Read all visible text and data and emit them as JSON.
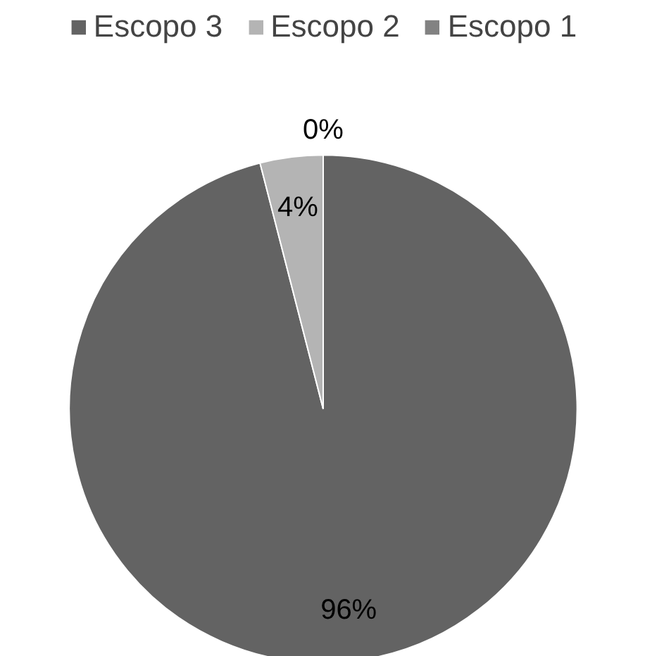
{
  "chart_data": {
    "type": "pie",
    "categories": [
      "Escopo 3",
      "Escopo 2",
      "Escopo 1"
    ],
    "values": [
      96,
      4,
      0
    ],
    "colors": [
      "#636363",
      "#b4b4b4",
      "#828282"
    ],
    "value_labels": [
      "96%",
      "4%",
      "0%"
    ],
    "legend": "top"
  }
}
